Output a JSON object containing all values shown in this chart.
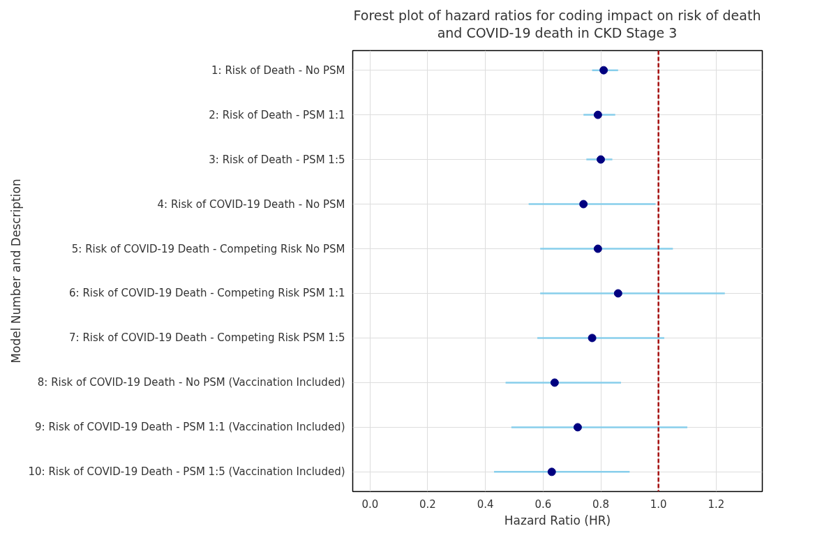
{
  "chart_data": {
    "type": "scatter",
    "orientation": "horizontal",
    "title": "Forest plot of hazard ratios for coding impact on risk of death\nand COVID-19 death in CKD Stage 3",
    "xlabel": "Hazard Ratio (HR)",
    "ylabel": "Model Number and Description",
    "categories": [
      "1: Risk of Death - No PSM",
      "2: Risk of Death - PSM 1:1",
      "3: Risk of Death - PSM 1:5",
      "4: Risk of COVID-19 Death - No PSM",
      "5: Risk of COVID-19 Death - Competing Risk No PSM",
      "6: Risk of COVID-19 Death - Competing Risk PSM 1:1",
      "7: Risk of COVID-19 Death - Competing Risk PSM 1:5",
      "8: Risk of COVID-19 Death - No PSM (Vaccination Included)",
      "9: Risk of COVID-19 Death - PSM 1:1 (Vaccination Included)",
      "10: Risk of COVID-19 Death - PSM 1:5 (Vaccination Included)"
    ],
    "series": [
      {
        "color": "#000080",
        "values": [
          0.81,
          0.79,
          0.8,
          0.74,
          0.79,
          0.86,
          0.77,
          0.64,
          0.72,
          0.63
        ],
        "errors": [
          [
            0.77,
            0.86
          ],
          [
            0.74,
            0.85
          ],
          [
            0.75,
            0.84
          ],
          [
            0.55,
            0.99
          ],
          [
            0.59,
            1.05
          ],
          [
            0.59,
            1.23
          ],
          [
            0.58,
            1.02
          ],
          [
            0.47,
            0.87
          ],
          [
            0.49,
            1.1
          ],
          [
            0.43,
            0.9
          ]
        ]
      }
    ],
    "xlim": [
      -0.06,
      1.36
    ],
    "xticks": [
      {
        "value": 0,
        "label": "0.0"
      },
      {
        "value": 0.2,
        "label": "0.2"
      },
      {
        "value": 0.4,
        "label": "0.4"
      },
      {
        "value": 0.6,
        "label": "0.6"
      },
      {
        "value": 0.8,
        "label": "0.8"
      },
      {
        "value": 1,
        "label": "1.0"
      },
      {
        "value": 1.2,
        "label": "1.2"
      }
    ],
    "ref_lines": [
      {
        "axis": "x",
        "value": 1.0,
        "color": "#a50f0f",
        "line_style": "dashed"
      }
    ],
    "grid": true,
    "marker": "circle"
  }
}
